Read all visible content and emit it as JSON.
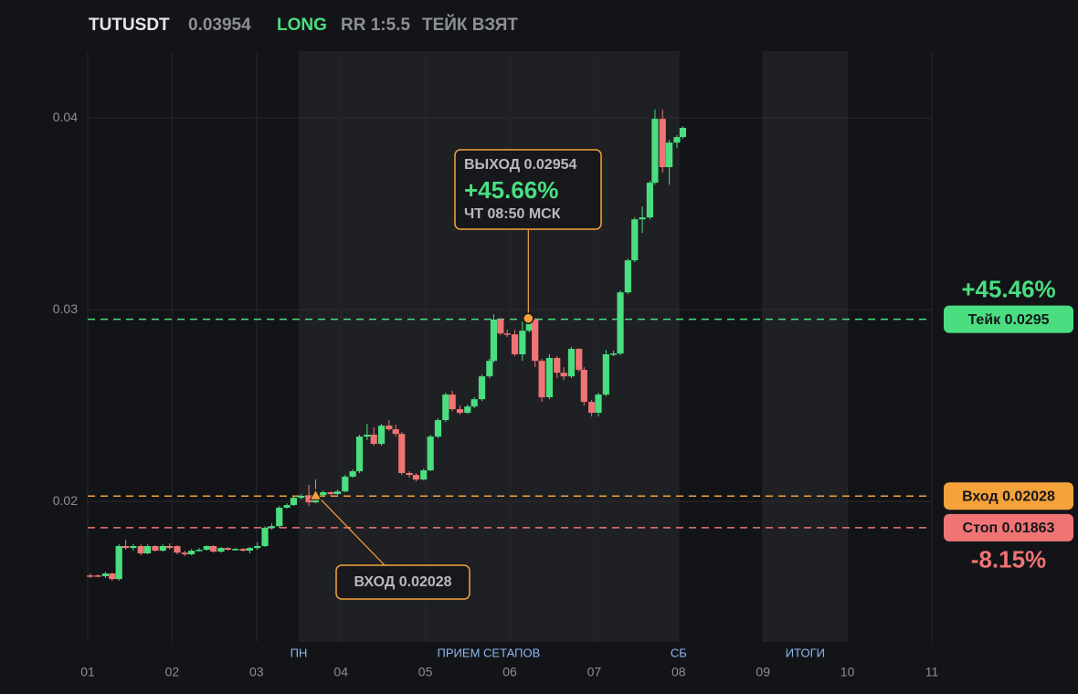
{
  "chart_data": {
    "type": "candlestick",
    "header": {
      "symbol": "TUTUSDT",
      "price": "0.03954",
      "side": "LONG",
      "rr": "RR 1:5.5",
      "status": "ТЕЙК ВЗЯТ"
    },
    "up_color": "#4ade80",
    "down_color": "#f07474",
    "xlim": [
      1,
      11
    ],
    "xticks": [
      {
        "value": 1,
        "label": "01"
      },
      {
        "value": 2,
        "label": "02"
      },
      {
        "value": 3,
        "label": "03"
      },
      {
        "value": 4,
        "label": "04"
      },
      {
        "value": 5,
        "label": "05"
      },
      {
        "value": 6,
        "label": "06"
      },
      {
        "value": 7,
        "label": "07"
      },
      {
        "value": 8,
        "label": "08"
      },
      {
        "value": 9,
        "label": "09"
      },
      {
        "value": 10,
        "label": "10"
      },
      {
        "value": 11,
        "label": "11"
      }
    ],
    "ylim": [
      0.01267,
      0.04348
    ],
    "yticks": [
      0.02,
      0.03,
      0.04
    ],
    "grid": true,
    "regions": [
      {
        "from": 3.5,
        "to": 8,
        "start_label": "ПН",
        "label": "ПРИЕМ СЕТАПОВ",
        "end_label": "СБ"
      },
      {
        "from": 9,
        "to": 10,
        "label": "ИТОГИ"
      }
    ],
    "x": [
      1.03,
      1.12,
      1.21,
      1.29,
      1.37,
      1.45,
      1.54,
      1.63,
      1.71,
      1.8,
      1.89,
      1.97,
      2.06,
      2.15,
      2.23,
      2.32,
      2.41,
      2.49,
      2.58,
      2.66,
      2.75,
      2.84,
      2.92,
      3.01,
      3.1,
      3.18,
      3.27,
      3.36,
      3.44,
      3.53,
      3.62,
      3.7,
      3.79,
      3.88,
      3.96,
      4.05,
      4.14,
      4.22,
      4.31,
      4.39,
      4.48,
      4.57,
      4.65,
      4.72,
      4.81,
      4.89,
      4.98,
      5.06,
      5.15,
      5.24,
      5.32,
      5.41,
      5.5,
      5.58,
      5.67,
      5.76,
      5.81,
      5.89,
      5.97,
      6.06,
      6.15,
      6.23,
      6.3,
      6.38,
      6.47,
      6.56,
      6.64,
      6.73,
      6.82,
      6.88,
      6.97,
      7.05,
      7.14,
      7.23,
      7.31,
      7.4,
      7.48,
      7.57,
      7.66,
      7.72,
      7.81,
      7.89,
      7.98,
      8.05
    ],
    "open": [
      0.01614,
      0.01614,
      0.0161,
      0.01624,
      0.01595,
      0.01767,
      0.01757,
      0.01767,
      0.01729,
      0.01767,
      0.01743,
      0.01767,
      0.01767,
      0.01733,
      0.01724,
      0.01743,
      0.01748,
      0.01767,
      0.01738,
      0.01757,
      0.01748,
      0.01752,
      0.01743,
      0.01757,
      0.01767,
      0.01862,
      0.01871,
      0.01967,
      0.01981,
      0.02019,
      0.02029,
      0.01995,
      0.02033,
      0.02048,
      0.02038,
      0.02052,
      0.02129,
      0.02157,
      0.02338,
      0.02348,
      0.023,
      0.02395,
      0.02376,
      0.02352,
      0.02148,
      0.02138,
      0.02114,
      0.02162,
      0.02338,
      0.02424,
      0.02557,
      0.02481,
      0.02462,
      0.02495,
      0.02533,
      0.02652,
      0.02733,
      0.02948,
      0.02876,
      0.02871,
      0.02767,
      0.0289,
      0.02948,
      0.02733,
      0.02543,
      0.02748,
      0.02671,
      0.02652,
      0.02795,
      0.02686,
      0.02519,
      0.02462,
      0.02557,
      0.02767,
      0.02771,
      0.0309,
      0.03257,
      0.03471,
      0.03481,
      0.03662,
      0.03995,
      0.03743,
      0.03871,
      0.039
    ],
    "high": [
      0.01624,
      0.01619,
      0.01633,
      0.01629,
      0.01776,
      0.018,
      0.01776,
      0.01776,
      0.01776,
      0.01771,
      0.01776,
      0.01781,
      0.01771,
      0.01743,
      0.01752,
      0.01757,
      0.01771,
      0.01771,
      0.01762,
      0.01762,
      0.01757,
      0.01757,
      0.01762,
      0.01786,
      0.01871,
      0.01886,
      0.01976,
      0.0199,
      0.02029,
      0.02038,
      0.02086,
      0.02114,
      0.02057,
      0.02052,
      0.02062,
      0.02138,
      0.02167,
      0.02348,
      0.02405,
      0.02386,
      0.02405,
      0.02424,
      0.024,
      0.02362,
      0.02157,
      0.02148,
      0.02171,
      0.02348,
      0.02433,
      0.02567,
      0.02576,
      0.025,
      0.02505,
      0.02543,
      0.02662,
      0.02743,
      0.02976,
      0.02957,
      0.02895,
      0.02895,
      0.02938,
      0.02957,
      0.02957,
      0.02743,
      0.02767,
      0.02757,
      0.027,
      0.02805,
      0.028,
      0.027,
      0.02529,
      0.02567,
      0.0279,
      0.02786,
      0.031,
      0.03267,
      0.03481,
      0.03538,
      0.03671,
      0.04043,
      0.04043,
      0.03886,
      0.0391,
      0.03957
    ],
    "low": [
      0.016,
      0.01605,
      0.016,
      0.01586,
      0.01586,
      0.01748,
      0.01743,
      0.01719,
      0.01724,
      0.01738,
      0.01738,
      0.01748,
      0.01724,
      0.01714,
      0.01719,
      0.01738,
      0.01743,
      0.01733,
      0.01733,
      0.01743,
      0.01743,
      0.01738,
      0.01729,
      0.01748,
      0.01762,
      0.01852,
      0.01862,
      0.01962,
      0.01976,
      0.0201,
      0.01976,
      0.0199,
      0.02024,
      0.02029,
      0.02033,
      0.02048,
      0.02124,
      0.02148,
      0.02319,
      0.0229,
      0.0229,
      0.02367,
      0.02338,
      0.02138,
      0.02124,
      0.02105,
      0.0211,
      0.02157,
      0.02329,
      0.02414,
      0.02471,
      0.02452,
      0.02457,
      0.02486,
      0.02524,
      0.02643,
      0.02724,
      0.02867,
      0.02857,
      0.02757,
      0.02733,
      0.02881,
      0.027,
      0.02519,
      0.02533,
      0.02643,
      0.02633,
      0.02643,
      0.02676,
      0.025,
      0.02443,
      0.02443,
      0.02548,
      0.02757,
      0.02762,
      0.03081,
      0.03248,
      0.034,
      0.03471,
      0.03652,
      0.03714,
      0.03652,
      0.03843,
      0.0389
    ],
    "close": [
      0.0161,
      0.0161,
      0.01624,
      0.01595,
      0.01767,
      0.01757,
      0.01767,
      0.01729,
      0.01767,
      0.01743,
      0.01767,
      0.01757,
      0.01733,
      0.01724,
      0.01743,
      0.01748,
      0.01767,
      0.01738,
      0.01757,
      0.01748,
      0.01752,
      0.01743,
      0.01757,
      0.01767,
      0.01862,
      0.01871,
      0.01967,
      0.01981,
      0.02019,
      0.02029,
      0.01995,
      0.02033,
      0.02048,
      0.02038,
      0.02052,
      0.02129,
      0.02157,
      0.02338,
      0.02348,
      0.023,
      0.02395,
      0.02376,
      0.02352,
      0.02148,
      0.02138,
      0.02114,
      0.02162,
      0.02338,
      0.02424,
      0.02557,
      0.02481,
      0.02462,
      0.02495,
      0.02533,
      0.02652,
      0.02733,
      0.02948,
      0.02876,
      0.02871,
      0.02767,
      0.0289,
      0.02948,
      0.02733,
      0.02543,
      0.02748,
      0.02671,
      0.02652,
      0.02795,
      0.02686,
      0.02519,
      0.02462,
      0.02557,
      0.02767,
      0.02771,
      0.0309,
      0.03257,
      0.03471,
      0.03481,
      0.03662,
      0.03995,
      0.03743,
      0.03871,
      0.039,
      0.03948
    ],
    "levels": [
      {
        "label": "Тейк 0.0295",
        "value": 0.0295,
        "color": "#4ade80",
        "pct": "+45.46%"
      },
      {
        "label": "Вход 0.02028",
        "value": 0.02028,
        "color": "#f5a23a"
      },
      {
        "label": "Стоп 0.01863",
        "value": 0.01863,
        "color": "#f07474",
        "pct": "-8.15%"
      }
    ],
    "entry": {
      "x": 3.7,
      "value": 0.02028,
      "label": "ВХОД 0.02028",
      "color": "#f5a23a"
    },
    "exit": {
      "x": 6.22,
      "value": 0.02954,
      "label": "ВЫХОД 0.02954",
      "pct": "+45.66%",
      "time": "ЧТ 08:50 МСК",
      "color": "#f5a23a"
    }
  }
}
